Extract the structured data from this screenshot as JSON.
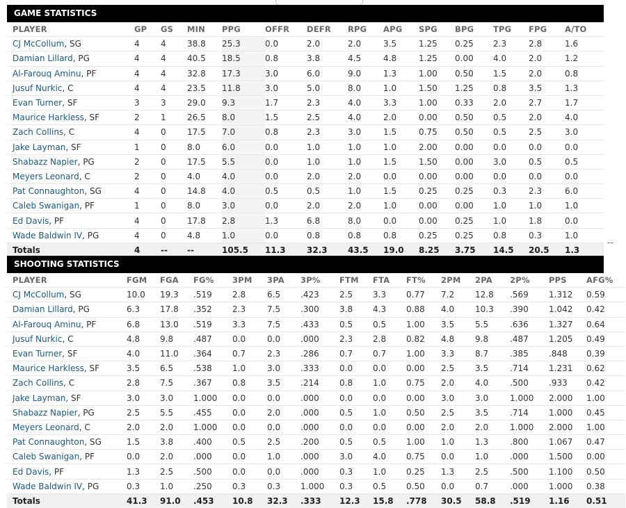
{
  "game": {
    "title": "GAME STATISTICS",
    "columns": [
      "PLAYER",
      "GP",
      "GS",
      "MIN",
      "PPG",
      "OFFR",
      "DEFR",
      "RPG",
      "APG",
      "SPG",
      "BPG",
      "TPG",
      "FPG",
      "A/TO"
    ],
    "rows": [
      {
        "name": "CJ McCollum",
        "pos": "SG",
        "vals": [
          "4",
          "4",
          "38.8",
          "25.3",
          "0.0",
          "2.0",
          "2.0",
          "3.5",
          "1.25",
          "0.25",
          "2.3",
          "2.8",
          "1.6"
        ]
      },
      {
        "name": "Damian Lillard",
        "pos": "PG",
        "vals": [
          "4",
          "4",
          "40.5",
          "18.5",
          "0.8",
          "3.8",
          "4.5",
          "4.8",
          "1.25",
          "0.00",
          "4.0",
          "2.0",
          "1.2"
        ]
      },
      {
        "name": "Al-Farouq Aminu",
        "pos": "PF",
        "vals": [
          "4",
          "4",
          "32.8",
          "17.3",
          "3.0",
          "6.0",
          "9.0",
          "1.3",
          "1.00",
          "0.50",
          "1.5",
          "2.0",
          "0.8"
        ]
      },
      {
        "name": "Jusuf Nurkic",
        "pos": "C",
        "vals": [
          "4",
          "4",
          "23.5",
          "11.8",
          "3.0",
          "5.0",
          "8.0",
          "1.0",
          "1.50",
          "1.25",
          "0.8",
          "3.5",
          "1.3"
        ]
      },
      {
        "name": "Evan Turner",
        "pos": "SF",
        "vals": [
          "3",
          "3",
          "29.0",
          "9.3",
          "1.7",
          "2.3",
          "4.0",
          "3.3",
          "1.00",
          "0.33",
          "2.0",
          "2.7",
          "1.7"
        ]
      },
      {
        "name": "Maurice Harkless",
        "pos": "SF",
        "vals": [
          "2",
          "1",
          "26.5",
          "8.0",
          "1.5",
          "2.5",
          "4.0",
          "2.0",
          "0.00",
          "0.50",
          "0.5",
          "2.0",
          "4.0"
        ]
      },
      {
        "name": "Zach Collins",
        "pos": "C",
        "vals": [
          "4",
          "0",
          "17.5",
          "7.0",
          "0.8",
          "2.3",
          "3.0",
          "1.5",
          "0.75",
          "0.50",
          "0.5",
          "2.5",
          "3.0"
        ]
      },
      {
        "name": "Jake Layman",
        "pos": "SF",
        "vals": [
          "1",
          "0",
          "8.0",
          "6.0",
          "0.0",
          "1.0",
          "1.0",
          "1.0",
          "2.00",
          "0.00",
          "0.0",
          "0.0",
          "0.0"
        ]
      },
      {
        "name": "Shabazz Napier",
        "pos": "PG",
        "vals": [
          "2",
          "0",
          "17.5",
          "5.5",
          "0.0",
          "1.0",
          "1.0",
          "1.5",
          "1.50",
          "0.00",
          "3.0",
          "0.5",
          "0.5"
        ]
      },
      {
        "name": "Meyers Leonard",
        "pos": "C",
        "vals": [
          "2",
          "0",
          "4.0",
          "4.0",
          "0.0",
          "2.0",
          "2.0",
          "0.0",
          "0.00",
          "0.00",
          "0.0",
          "0.0",
          "0.0"
        ]
      },
      {
        "name": "Pat Connaughton",
        "pos": "SG",
        "vals": [
          "4",
          "0",
          "14.8",
          "4.0",
          "0.5",
          "0.5",
          "1.0",
          "1.5",
          "0.25",
          "0.25",
          "0.3",
          "2.3",
          "6.0"
        ]
      },
      {
        "name": "Caleb Swanigan",
        "pos": "PF",
        "vals": [
          "1",
          "0",
          "8.0",
          "3.0",
          "0.0",
          "2.0",
          "2.0",
          "1.0",
          "0.00",
          "0.00",
          "1.0",
          "1.0",
          "1.0"
        ]
      },
      {
        "name": "Ed Davis",
        "pos": "PF",
        "vals": [
          "4",
          "0",
          "17.8",
          "2.8",
          "1.3",
          "6.8",
          "8.0",
          "0.0",
          "0.00",
          "0.25",
          "1.0",
          "1.8",
          "0.0"
        ]
      },
      {
        "name": "Wade Baldwin IV",
        "pos": "PG",
        "vals": [
          "4",
          "0",
          "4.8",
          "1.0",
          "0.0",
          "0.8",
          "0.8",
          "0.8",
          "0.25",
          "0.25",
          "0.8",
          "0.3",
          "1.0"
        ]
      }
    ],
    "totals": {
      "label": "Totals",
      "vals": [
        "4",
        "--",
        "--",
        "105.5",
        "11.3",
        "32.3",
        "43.5",
        "19.0",
        "8.25",
        "3.75",
        "14.5",
        "20.5",
        "1.3"
      ],
      "extra": "--"
    }
  },
  "shooting": {
    "title": "SHOOTING STATISTICS",
    "columns": [
      "PLAYER",
      "FGM",
      "FGA",
      "FG%",
      "3PM",
      "3PA",
      "3P%",
      "FTM",
      "FTA",
      "FT%",
      "2PM",
      "2PA",
      "2P%",
      "PPS",
      "AFG%"
    ],
    "rows": [
      {
        "name": "CJ McCollum",
        "pos": "SG",
        "vals": [
          "10.0",
          "19.3",
          ".519",
          "2.8",
          "6.5",
          ".423",
          "2.5",
          "3.3",
          "0.77",
          "7.2",
          "12.8",
          ".569",
          "1.312",
          "0.59"
        ]
      },
      {
        "name": "Damian Lillard",
        "pos": "PG",
        "vals": [
          "6.3",
          "17.8",
          ".352",
          "2.3",
          "7.5",
          ".300",
          "3.8",
          "4.3",
          "0.88",
          "4.0",
          "10.3",
          ".390",
          "1.042",
          "0.42"
        ]
      },
      {
        "name": "Al-Farouq Aminu",
        "pos": "PF",
        "vals": [
          "6.8",
          "13.0",
          ".519",
          "3.3",
          "7.5",
          ".433",
          "0.5",
          "0.5",
          "1.00",
          "3.5",
          "5.5",
          ".636",
          "1.327",
          "0.64"
        ]
      },
      {
        "name": "Jusuf Nurkic",
        "pos": "C",
        "vals": [
          "4.8",
          "9.8",
          ".487",
          "0.0",
          "0.0",
          ".000",
          "2.3",
          "2.8",
          "0.82",
          "4.8",
          "9.8",
          ".487",
          "1.205",
          "0.49"
        ]
      },
      {
        "name": "Evan Turner",
        "pos": "SF",
        "vals": [
          "4.0",
          "11.0",
          ".364",
          "0.7",
          "2.3",
          ".286",
          "0.7",
          "0.7",
          "1.00",
          "3.3",
          "8.7",
          ".385",
          ".848",
          "0.39"
        ]
      },
      {
        "name": "Maurice Harkless",
        "pos": "SF",
        "vals": [
          "3.5",
          "6.5",
          ".538",
          "1.0",
          "3.0",
          ".333",
          "0.0",
          "0.0",
          "0.00",
          "2.5",
          "3.5",
          ".714",
          "1.231",
          "0.62"
        ]
      },
      {
        "name": "Zach Collins",
        "pos": "C",
        "vals": [
          "2.8",
          "7.5",
          ".367",
          "0.8",
          "3.5",
          ".214",
          "0.8",
          "1.0",
          "0.75",
          "2.0",
          "4.0",
          ".500",
          ".933",
          "0.42"
        ]
      },
      {
        "name": "Jake Layman",
        "pos": "SF",
        "vals": [
          "3.0",
          "3.0",
          "1.000",
          "0.0",
          "0.0",
          ".000",
          "0.0",
          "0.0",
          "0.00",
          "3.0",
          "3.0",
          "1.000",
          "2.000",
          "1.00"
        ]
      },
      {
        "name": "Shabazz Napier",
        "pos": "PG",
        "vals": [
          "2.5",
          "5.5",
          ".455",
          "0.0",
          "2.0",
          ".000",
          "0.5",
          "1.0",
          "0.50",
          "2.5",
          "3.5",
          ".714",
          "1.000",
          "0.45"
        ]
      },
      {
        "name": "Meyers Leonard",
        "pos": "C",
        "vals": [
          "2.0",
          "2.0",
          "1.000",
          "0.0",
          "0.0",
          ".000",
          "0.0",
          "0.0",
          "0.00",
          "2.0",
          "2.0",
          "1.000",
          "2.000",
          "1.00"
        ]
      },
      {
        "name": "Pat Connaughton",
        "pos": "SG",
        "vals": [
          "1.5",
          "3.8",
          ".400",
          "0.5",
          "2.5",
          ".200",
          "0.5",
          "0.5",
          "1.00",
          "1.0",
          "1.3",
          ".800",
          "1.067",
          "0.47"
        ]
      },
      {
        "name": "Caleb Swanigan",
        "pos": "PF",
        "vals": [
          "0.0",
          "2.0",
          ".000",
          "0.0",
          "1.0",
          ".000",
          "3.0",
          "4.0",
          "0.75",
          "0.0",
          "1.0",
          ".000",
          "1.500",
          "0.00"
        ]
      },
      {
        "name": "Ed Davis",
        "pos": "PF",
        "vals": [
          "1.3",
          "2.5",
          ".500",
          "0.0",
          "0.0",
          ".000",
          "0.3",
          "1.0",
          "0.25",
          "1.3",
          "2.5",
          ".500",
          "1.100",
          "0.50"
        ]
      },
      {
        "name": "Wade Baldwin IV",
        "pos": "PG",
        "vals": [
          "0.3",
          "1.0",
          ".250",
          "0.3",
          "0.3",
          "1.000",
          "0.3",
          "0.5",
          "0.50",
          "0.0",
          "0.7",
          ".000",
          "1.000",
          "0.38"
        ]
      }
    ],
    "totals": {
      "label": "Totals",
      "vals": [
        "41.3",
        "91.0",
        ".453",
        "10.8",
        "32.3",
        ".333",
        "12.3",
        "15.8",
        ".778",
        "30.5",
        "58.8",
        ".519",
        "1.16",
        "0.51"
      ]
    }
  },
  "colors": {
    "header_bg": "#000000",
    "player_link": "#1a5a8a",
    "totals_bg": "#f0f0f0",
    "sorted_col_bg": "#f3f3f3"
  }
}
